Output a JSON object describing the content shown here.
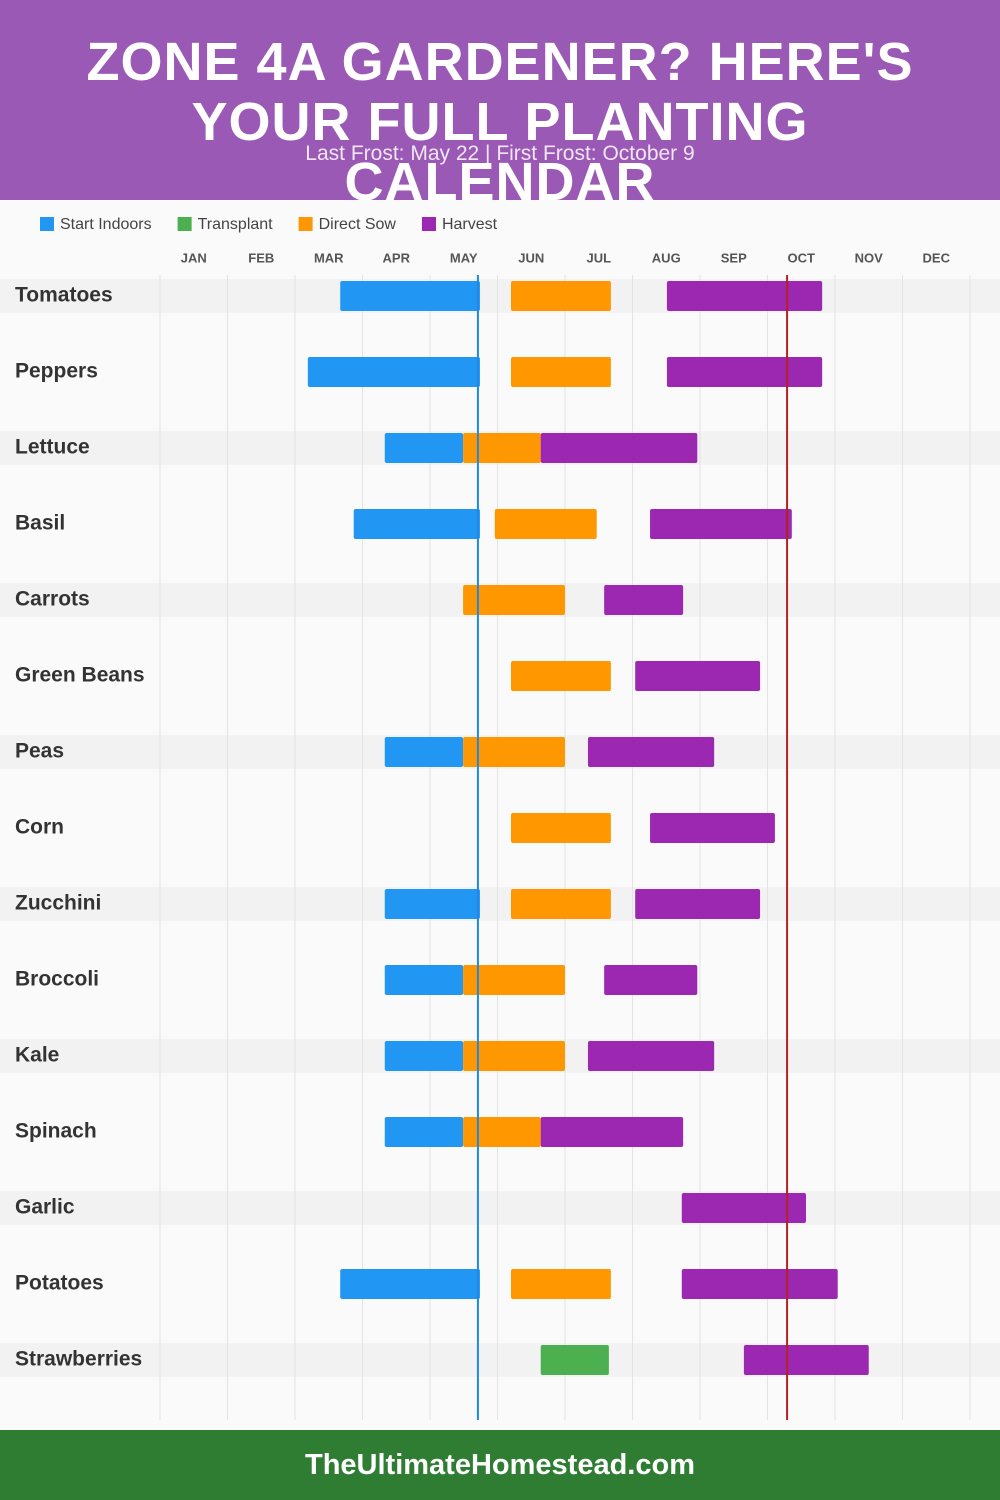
{
  "header": {
    "title": "ZONE 4A GARDENER? HERE'S YOUR FULL PLANTING CALENDAR",
    "subtitle": "Last Frost: May 22 | First Frost: October 9"
  },
  "chart_data": {
    "type": "gantt",
    "months": [
      "JAN",
      "FEB",
      "MAR",
      "APR",
      "MAY",
      "JUN",
      "JUL",
      "AUG",
      "SEP",
      "OCT",
      "NOV",
      "DEC"
    ],
    "xlim": [
      0,
      12
    ],
    "categories": [
      "Tomatoes",
      "Peppers",
      "Lettuce",
      "Basil",
      "Carrots",
      "Green Beans",
      "Peas",
      "Corn",
      "Zucchini",
      "Broccoli",
      "Kale",
      "Spinach",
      "Garlic",
      "Potatoes",
      "Strawberries"
    ],
    "series": [
      {
        "name": "Start Indoors",
        "color": "#2196f3",
        "values": [
          [
            2.67,
            4.74
          ],
          [
            2.19,
            4.74
          ],
          [
            3.33,
            4.49
          ],
          [
            2.87,
            4.74
          ],
          null,
          null,
          [
            3.33,
            4.49
          ],
          null,
          [
            3.33,
            4.74
          ],
          [
            3.33,
            4.49
          ],
          [
            3.33,
            4.49
          ],
          [
            3.33,
            4.49
          ],
          null,
          [
            2.67,
            4.74
          ],
          null
        ]
      },
      {
        "name": "Transplant",
        "color": "#4caf50",
        "values": [
          null,
          null,
          null,
          null,
          null,
          null,
          null,
          null,
          null,
          null,
          null,
          null,
          null,
          null,
          [
            5.64,
            6.65
          ]
        ]
      },
      {
        "name": "Direct Sow",
        "color": "#ff9800",
        "values": [
          [
            5.2,
            6.68
          ],
          [
            5.2,
            6.68
          ],
          [
            4.49,
            5.64
          ],
          [
            4.96,
            6.47
          ],
          [
            4.49,
            6.0
          ],
          [
            5.2,
            6.68
          ],
          [
            4.49,
            6.0
          ],
          [
            5.2,
            6.68
          ],
          [
            5.2,
            6.68
          ],
          [
            4.49,
            6.0
          ],
          [
            4.49,
            6.0
          ],
          [
            4.49,
            5.64
          ],
          null,
          [
            5.2,
            6.68
          ],
          null
        ]
      },
      {
        "name": "Harvest",
        "color": "#9c27b0",
        "values": [
          [
            7.51,
            9.81
          ],
          [
            7.51,
            9.81
          ],
          [
            5.64,
            7.96
          ],
          [
            7.26,
            9.36
          ],
          [
            6.58,
            7.75
          ],
          [
            7.04,
            8.89
          ],
          [
            6.34,
            8.21
          ],
          [
            7.26,
            9.11
          ],
          [
            7.04,
            8.89
          ],
          [
            6.58,
            7.96
          ],
          [
            6.34,
            8.21
          ],
          [
            5.64,
            7.75
          ],
          [
            7.73,
            9.57
          ],
          [
            7.73,
            10.04
          ],
          [
            8.65,
            10.5
          ]
        ]
      }
    ],
    "markers": [
      {
        "value": 4.71,
        "color": "#1e88e5"
      },
      {
        "value": 9.29,
        "color": "#b22222"
      }
    ]
  },
  "footer": {
    "text": "TheUltimateHomestead.com"
  }
}
